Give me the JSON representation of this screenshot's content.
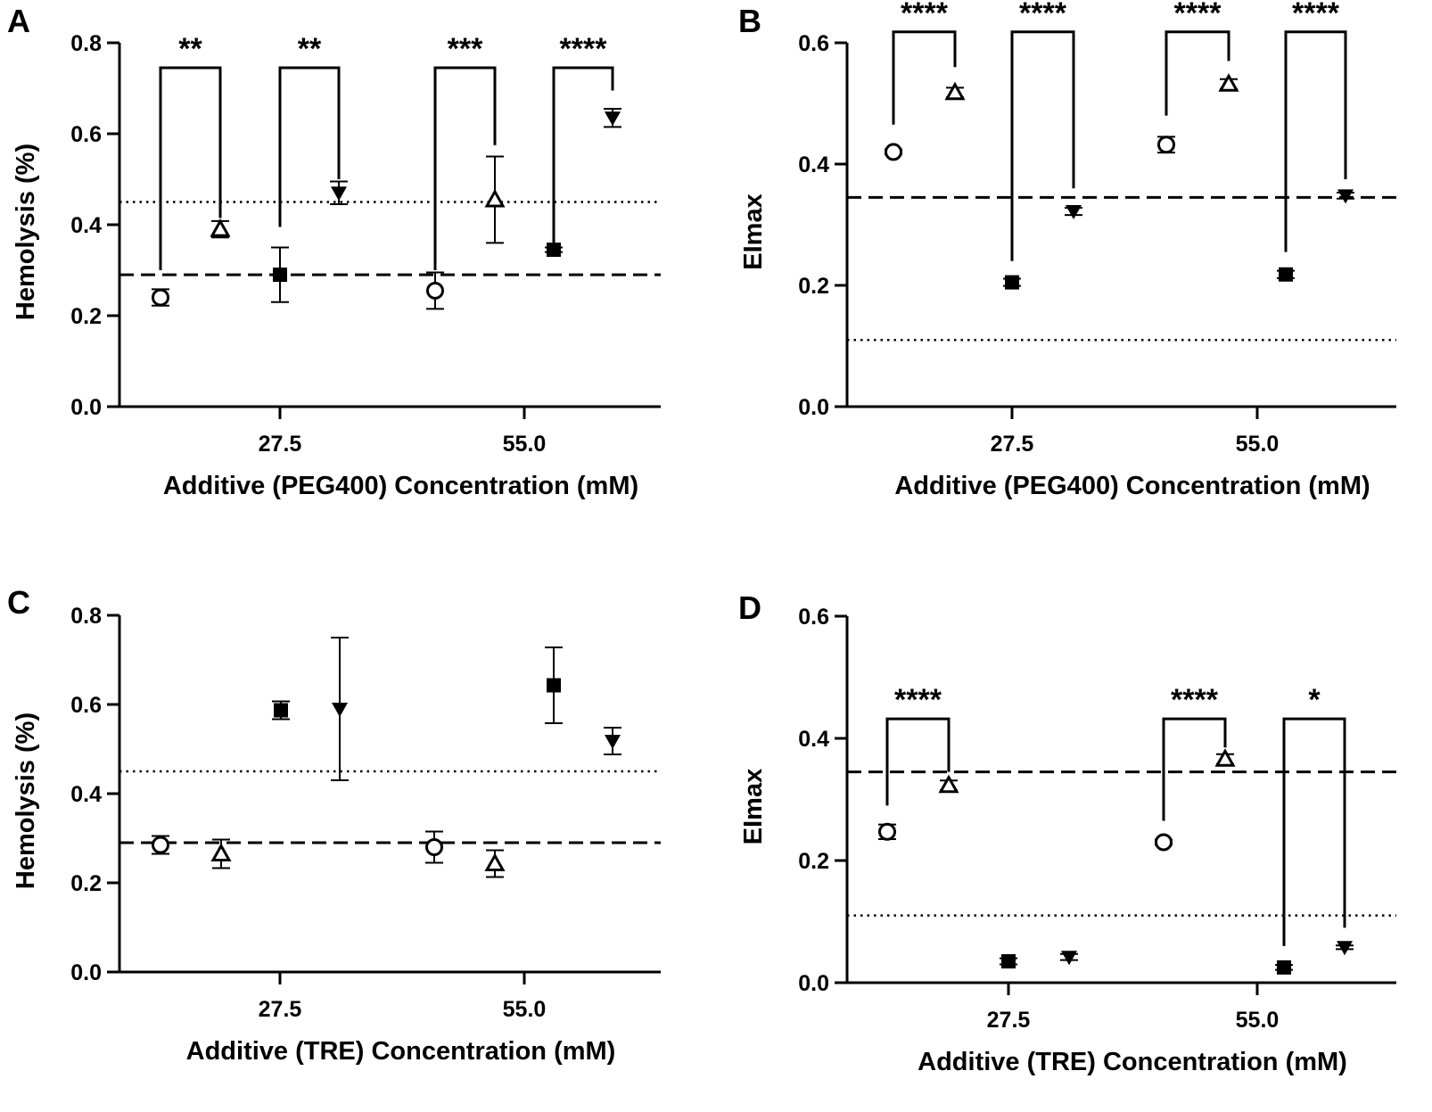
{
  "chart_data": [
    {
      "type": "scatter",
      "panel": "A",
      "xlabel": "Additive (PEG400) Concentration (mM)",
      "ylabel": "Hemolysis (%)",
      "ylim": [
        0,
        0.8
      ],
      "yticks": [
        "0.0",
        "0.2",
        "0.4",
        "0.6",
        "0.8"
      ],
      "categories": [
        "27.5",
        "55.0"
      ],
      "reference_lines": [
        {
          "style": "dashed",
          "value": 0.29
        },
        {
          "style": "dotted",
          "value": 0.45
        }
      ],
      "points": [
        {
          "group": 0,
          "slot": 0,
          "marker": "circle",
          "value": 0.24,
          "err": 0.018
        },
        {
          "group": 0,
          "slot": 1,
          "marker": "triangle-up",
          "value": 0.39,
          "err": 0.018
        },
        {
          "group": 0,
          "slot": 2,
          "marker": "square",
          "value": 0.29,
          "err": 0.06
        },
        {
          "group": 0,
          "slot": 3,
          "marker": "triangle-down",
          "value": 0.47,
          "err": 0.025
        },
        {
          "group": 1,
          "slot": 0,
          "marker": "circle",
          "value": 0.255,
          "err": 0.04
        },
        {
          "group": 1,
          "slot": 1,
          "marker": "triangle-up",
          "value": 0.455,
          "err": 0.095
        },
        {
          "group": 1,
          "slot": 2,
          "marker": "square",
          "value": 0.345,
          "err": 0.005
        },
        {
          "group": 1,
          "slot": 3,
          "marker": "triangle-down",
          "value": 0.635,
          "err": 0.02
        }
      ],
      "significance": [
        {
          "from": [
            0,
            0
          ],
          "to": [
            0,
            1
          ],
          "label": "**",
          "top": 0.745,
          "left_drop": 0.3,
          "right_drop": 0.415
        },
        {
          "from": [
            0,
            2
          ],
          "to": [
            0,
            3
          ],
          "label": "**",
          "top": 0.745,
          "left_drop": 0.395,
          "right_drop": 0.5
        },
        {
          "from": [
            1,
            0
          ],
          "to": [
            1,
            1
          ],
          "label": "***",
          "top": 0.745,
          "left_drop": 0.3,
          "right_drop": 0.575
        },
        {
          "from": [
            1,
            2
          ],
          "to": [
            1,
            3
          ],
          "label": "****",
          "top": 0.745,
          "left_drop": 0.36,
          "right_drop": 0.695
        }
      ]
    },
    {
      "type": "scatter",
      "panel": "B",
      "xlabel": "Additive (PEG400) Concentration (mM)",
      "ylabel": "EImax",
      "ylim": [
        0,
        0.6
      ],
      "yticks": [
        "0.0",
        "0.2",
        "0.4",
        "0.6"
      ],
      "categories": [
        "27.5",
        "55.0"
      ],
      "reference_lines": [
        {
          "style": "dashed",
          "value": 0.345
        },
        {
          "style": "dotted",
          "value": 0.11
        }
      ],
      "points": [
        {
          "group": 0,
          "slot": 0,
          "marker": "circle",
          "value": 0.42,
          "err": 0.004
        },
        {
          "group": 0,
          "slot": 1,
          "marker": "triangle-up",
          "value": 0.518,
          "err": 0.008
        },
        {
          "group": 0,
          "slot": 2,
          "marker": "square",
          "value": 0.205,
          "err": 0.006
        },
        {
          "group": 0,
          "slot": 3,
          "marker": "triangle-down",
          "value": 0.322,
          "err": 0.006
        },
        {
          "group": 1,
          "slot": 0,
          "marker": "circle",
          "value": 0.432,
          "err": 0.013
        },
        {
          "group": 1,
          "slot": 1,
          "marker": "triangle-up",
          "value": 0.532,
          "err": 0.008
        },
        {
          "group": 1,
          "slot": 2,
          "marker": "square",
          "value": 0.218,
          "err": 0.006
        },
        {
          "group": 1,
          "slot": 3,
          "marker": "triangle-down",
          "value": 0.348,
          "err": 0.005
        }
      ],
      "significance": [
        {
          "from": [
            0,
            0
          ],
          "to": [
            0,
            1
          ],
          "label": "****",
          "top": 0.618,
          "left_drop": 0.465,
          "right_drop": 0.56
        },
        {
          "from": [
            0,
            2
          ],
          "to": [
            0,
            3
          ],
          "label": "****",
          "top": 0.618,
          "left_drop": 0.24,
          "right_drop": 0.36
        },
        {
          "from": [
            1,
            0
          ],
          "to": [
            1,
            1
          ],
          "label": "****",
          "top": 0.618,
          "left_drop": 0.48,
          "right_drop": 0.57
        },
        {
          "from": [
            1,
            2
          ],
          "to": [
            1,
            3
          ],
          "label": "****",
          "top": 0.618,
          "left_drop": 0.255,
          "right_drop": 0.375
        }
      ]
    },
    {
      "type": "scatter",
      "panel": "C",
      "xlabel": "Additive (TRE) Concentration (mM)",
      "ylabel": "Hemolysis (%)",
      "ylim": [
        0,
        0.8
      ],
      "yticks": [
        "0.0",
        "0.2",
        "0.4",
        "0.6",
        "0.8"
      ],
      "categories": [
        "27.5",
        "55.0"
      ],
      "reference_lines": [
        {
          "style": "dashed",
          "value": 0.29
        },
        {
          "style": "dotted",
          "value": 0.45
        }
      ],
      "points": [
        {
          "group": 0,
          "slot": 0,
          "marker": "circle",
          "value": 0.285,
          "err": 0.02
        },
        {
          "group": 0,
          "slot": 1,
          "marker": "triangle-up",
          "value": 0.265,
          "err": 0.032
        },
        {
          "group": 0,
          "slot": 2,
          "marker": "square",
          "value": 0.587,
          "err": 0.02
        },
        {
          "group": 0,
          "slot": 3,
          "marker": "triangle-down",
          "value": 0.59,
          "err": 0.16
        },
        {
          "group": 1,
          "slot": 0,
          "marker": "circle",
          "value": 0.28,
          "err": 0.035
        },
        {
          "group": 1,
          "slot": 1,
          "marker": "triangle-up",
          "value": 0.243,
          "err": 0.03
        },
        {
          "group": 1,
          "slot": 2,
          "marker": "square",
          "value": 0.643,
          "err": 0.085
        },
        {
          "group": 1,
          "slot": 3,
          "marker": "triangle-down",
          "value": 0.518,
          "err": 0.03
        }
      ],
      "significance": []
    },
    {
      "type": "scatter",
      "panel": "D",
      "xlabel": "Additive (TRE) Concentration (mM)",
      "ylabel": "EImax",
      "ylim": [
        0,
        0.6
      ],
      "yticks": [
        "0.0",
        "0.2",
        "0.4",
        "0.6"
      ],
      "categories": [
        "27.5",
        "55.0"
      ],
      "reference_lines": [
        {
          "style": "dashed",
          "value": 0.345
        },
        {
          "style": "dotted",
          "value": 0.11
        }
      ],
      "points": [
        {
          "group": 0,
          "slot": 0,
          "marker": "circle",
          "value": 0.247,
          "err": 0.012
        },
        {
          "group": 0,
          "slot": 1,
          "marker": "triangle-up",
          "value": 0.323,
          "err": 0.008
        },
        {
          "group": 0,
          "slot": 2,
          "marker": "square",
          "value": 0.035,
          "err": 0.005
        },
        {
          "group": 0,
          "slot": 3,
          "marker": "triangle-down",
          "value": 0.042,
          "err": 0.005
        },
        {
          "group": 1,
          "slot": 0,
          "marker": "circle",
          "value": 0.23,
          "err": 0.004
        },
        {
          "group": 1,
          "slot": 1,
          "marker": "triangle-up",
          "value": 0.366,
          "err": 0.008
        },
        {
          "group": 1,
          "slot": 2,
          "marker": "square",
          "value": 0.025,
          "err": 0.004
        },
        {
          "group": 1,
          "slot": 3,
          "marker": "triangle-down",
          "value": 0.058,
          "err": 0.003
        }
      ],
      "significance": [
        {
          "from": [
            0,
            0
          ],
          "to": [
            0,
            1
          ],
          "label": "****",
          "top": 0.432,
          "left_drop": 0.29,
          "right_drop": 0.345
        },
        {
          "from": [
            1,
            0
          ],
          "to": [
            1,
            1
          ],
          "label": "****",
          "top": 0.432,
          "left_drop": 0.265,
          "right_drop": 0.385
        },
        {
          "from": [
            1,
            2
          ],
          "to": [
            1,
            3
          ],
          "label": "*",
          "top": 0.432,
          "left_drop": 0.06,
          "right_drop": 0.09
        }
      ]
    }
  ]
}
